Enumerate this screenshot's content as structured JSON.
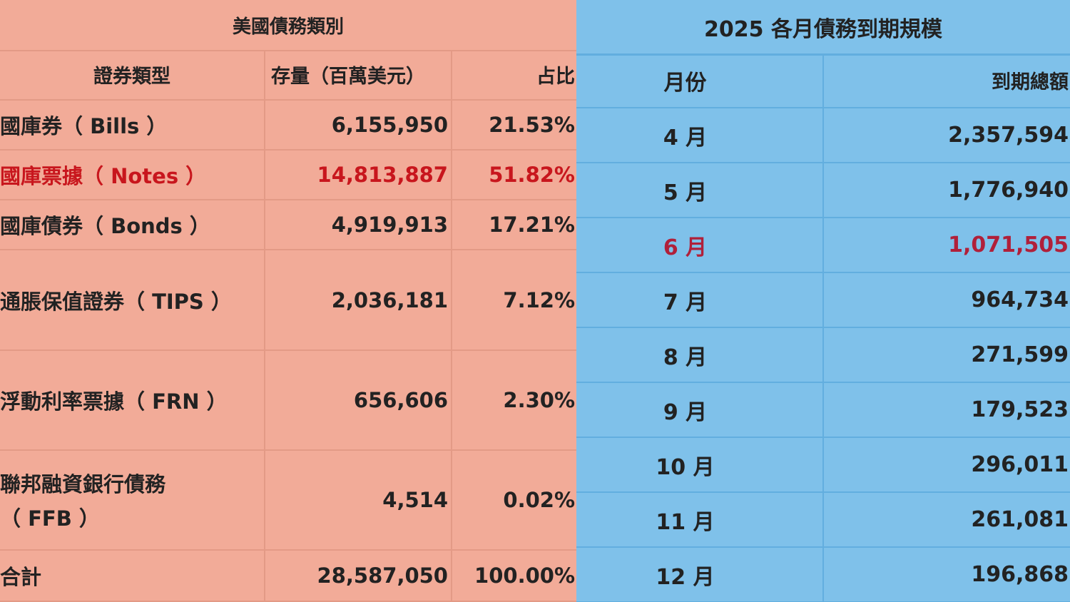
{
  "left": {
    "title": "美國債務類別",
    "headers": [
      "證券類型",
      "存量（百萬美元）",
      "占比"
    ],
    "rows": [
      {
        "type": "國庫券（ Bills ）",
        "amount": "6,155,950",
        "share": "21.53%"
      },
      {
        "type": "國庫票據（ Notes ）",
        "amount": "14,813,887",
        "share": "51.82%"
      },
      {
        "type": "國庫債券（ Bonds ）",
        "amount": "4,919,913",
        "share": "17.21%"
      },
      {
        "type": "通脹保值證券（ TIPS ）",
        "amount": "2,036,181",
        "share": "7.12%"
      },
      {
        "type": "浮動利率票據（ FRN ）",
        "amount": "656,606",
        "share": "2.30%"
      },
      {
        "type_line1": "聯邦融資銀行債務",
        "type_line2": "（ FFB ）",
        "amount": "4,514",
        "share": "0.02%"
      },
      {
        "type": "合計",
        "amount": "28,587,050",
        "share": "100.00%"
      }
    ],
    "highlight_color": "#c8161d"
  },
  "right": {
    "title": "2025 各月債務到期規模",
    "headers": [
      "月份",
      "到期總額"
    ],
    "rows": [
      {
        "month": "4 月",
        "total": "2,357,594"
      },
      {
        "month": "5 月",
        "total": "1,776,940"
      },
      {
        "month": "6 月",
        "total": "1,071,505"
      },
      {
        "month": "7 月",
        "total": "964,734"
      },
      {
        "month": "8 月",
        "total": "271,599"
      },
      {
        "month": "9 月",
        "total": "179,523"
      },
      {
        "month": "10 月",
        "total": "296,011"
      },
      {
        "month": "11 月",
        "total": "261,081"
      },
      {
        "month": "12 月",
        "total": "196,868"
      }
    ],
    "highlight_color": "#b0203a"
  },
  "colors": {
    "left_bg": "#f2ab98",
    "right_bg": "#7fc1ea"
  }
}
